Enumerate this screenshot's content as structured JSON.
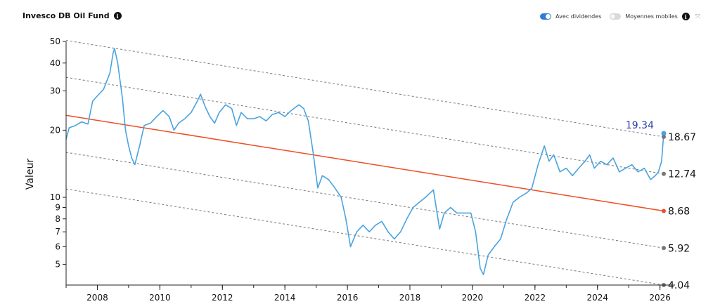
{
  "header": {
    "title": "Invesco DB Oil Fund",
    "info_icon": "info-icon",
    "toggle_dividends_label": "Avec dividendes",
    "toggle_dividends_on": true,
    "toggle_moving_avg_label": "Moyennes mobiles",
    "toggle_moving_avg_on": false,
    "expand_icon": "expand-icon"
  },
  "colors": {
    "price_line": "#4aa3df",
    "trend_line": "#ee4d24",
    "band_line": "#777777",
    "current_value": "#2a3f9e",
    "toggle_on": "#2f7bd8"
  },
  "chart_data": {
    "type": "line",
    "title": "",
    "ylabel": "Valeur",
    "xlabel": "",
    "y_scale": "log",
    "ylim": [
      4.04,
      50
    ],
    "xlim": [
      2007.0,
      2026.3
    ],
    "x_ticks": [
      "2008",
      "2010",
      "2012",
      "2014",
      "2016",
      "2018",
      "2020",
      "2022",
      "2024",
      "2026"
    ],
    "y_ticks": [
      "50",
      "40",
      "30",
      "20",
      "10",
      "9",
      "8",
      "7",
      "6",
      "5"
    ],
    "grid": false,
    "legend": "none",
    "current_value": "19.34",
    "series": [
      {
        "role": "price",
        "points": [
          [
            2007.0,
            18.2
          ],
          [
            2007.1,
            20.5
          ],
          [
            2007.3,
            21.0
          ],
          [
            2007.5,
            21.8
          ],
          [
            2007.7,
            21.3
          ],
          [
            2007.85,
            27.0
          ],
          [
            2008.0,
            28.5
          ],
          [
            2008.2,
            30.5
          ],
          [
            2008.4,
            36.0
          ],
          [
            2008.5,
            44.0
          ],
          [
            2008.55,
            46.5
          ],
          [
            2008.65,
            40.0
          ],
          [
            2008.8,
            28.0
          ],
          [
            2008.9,
            20.0
          ],
          [
            2009.0,
            17.0
          ],
          [
            2009.1,
            15.0
          ],
          [
            2009.2,
            14.0
          ],
          [
            2009.35,
            17.0
          ],
          [
            2009.5,
            21.0
          ],
          [
            2009.7,
            21.5
          ],
          [
            2009.9,
            23.0
          ],
          [
            2010.1,
            24.5
          ],
          [
            2010.3,
            23.0
          ],
          [
            2010.45,
            20.0
          ],
          [
            2010.6,
            21.5
          ],
          [
            2010.8,
            22.5
          ],
          [
            2011.0,
            24.0
          ],
          [
            2011.2,
            27.0
          ],
          [
            2011.3,
            29.0
          ],
          [
            2011.45,
            25.5
          ],
          [
            2011.6,
            23.0
          ],
          [
            2011.75,
            21.5
          ],
          [
            2011.9,
            24.0
          ],
          [
            2012.1,
            26.0
          ],
          [
            2012.3,
            25.0
          ],
          [
            2012.45,
            21.0
          ],
          [
            2012.6,
            24.0
          ],
          [
            2012.8,
            22.5
          ],
          [
            2013.0,
            22.5
          ],
          [
            2013.2,
            23.0
          ],
          [
            2013.4,
            22.0
          ],
          [
            2013.6,
            23.5
          ],
          [
            2013.8,
            24.0
          ],
          [
            2014.0,
            23.0
          ],
          [
            2014.2,
            24.5
          ],
          [
            2014.45,
            26.0
          ],
          [
            2014.6,
            25.0
          ],
          [
            2014.75,
            22.0
          ],
          [
            2014.9,
            16.0
          ],
          [
            2015.05,
            11.0
          ],
          [
            2015.2,
            12.5
          ],
          [
            2015.4,
            12.0
          ],
          [
            2015.6,
            11.0
          ],
          [
            2015.8,
            10.0
          ],
          [
            2015.95,
            8.0
          ],
          [
            2016.1,
            6.0
          ],
          [
            2016.3,
            7.0
          ],
          [
            2016.5,
            7.5
          ],
          [
            2016.7,
            7.0
          ],
          [
            2016.9,
            7.5
          ],
          [
            2017.1,
            7.8
          ],
          [
            2017.3,
            7.0
          ],
          [
            2017.5,
            6.5
          ],
          [
            2017.7,
            7.0
          ],
          [
            2017.9,
            8.0
          ],
          [
            2018.1,
            9.0
          ],
          [
            2018.3,
            9.5
          ],
          [
            2018.5,
            10.0
          ],
          [
            2018.75,
            10.8
          ],
          [
            2018.95,
            7.2
          ],
          [
            2019.1,
            8.5
          ],
          [
            2019.3,
            9.0
          ],
          [
            2019.5,
            8.5
          ],
          [
            2019.7,
            8.5
          ],
          [
            2019.95,
            8.5
          ],
          [
            2020.1,
            7.0
          ],
          [
            2020.25,
            4.8
          ],
          [
            2020.35,
            4.5
          ],
          [
            2020.5,
            5.5
          ],
          [
            2020.7,
            6.0
          ],
          [
            2020.9,
            6.5
          ],
          [
            2021.1,
            8.0
          ],
          [
            2021.3,
            9.5
          ],
          [
            2021.5,
            10.0
          ],
          [
            2021.75,
            10.5
          ],
          [
            2021.9,
            11.0
          ],
          [
            2022.1,
            14.0
          ],
          [
            2022.3,
            17.0
          ],
          [
            2022.45,
            14.5
          ],
          [
            2022.6,
            15.5
          ],
          [
            2022.8,
            13.0
          ],
          [
            2023.0,
            13.5
          ],
          [
            2023.2,
            12.5
          ],
          [
            2023.4,
            13.5
          ],
          [
            2023.6,
            14.5
          ],
          [
            2023.75,
            15.5
          ],
          [
            2023.9,
            13.5
          ],
          [
            2024.1,
            14.5
          ],
          [
            2024.3,
            14.0
          ],
          [
            2024.5,
            15.0
          ],
          [
            2024.7,
            13.0
          ],
          [
            2024.9,
            13.5
          ],
          [
            2025.1,
            14.0
          ],
          [
            2025.3,
            13.0
          ],
          [
            2025.5,
            13.5
          ],
          [
            2025.7,
            12.0
          ],
          [
            2025.85,
            12.5
          ],
          [
            2025.95,
            13.0
          ],
          [
            2026.05,
            14.5
          ],
          [
            2026.12,
            19.34
          ]
        ]
      },
      {
        "role": "trend",
        "points": [
          [
            2007.0,
            23.3
          ],
          [
            2026.12,
            8.68
          ]
        ],
        "end_label": "8.68"
      },
      {
        "role": "band",
        "points": [
          [
            2007.0,
            50.5
          ],
          [
            2026.12,
            18.67
          ]
        ],
        "end_label": "18.67"
      },
      {
        "role": "band",
        "points": [
          [
            2007.0,
            34.5
          ],
          [
            2026.12,
            12.74
          ]
        ],
        "end_label": "12.74"
      },
      {
        "role": "band",
        "points": [
          [
            2007.0,
            15.9
          ],
          [
            2026.12,
            5.92
          ]
        ],
        "end_label": "5.92"
      },
      {
        "role": "band",
        "points": [
          [
            2007.0,
            10.9
          ],
          [
            2026.12,
            4.04
          ]
        ],
        "end_label": "4.04"
      }
    ]
  }
}
